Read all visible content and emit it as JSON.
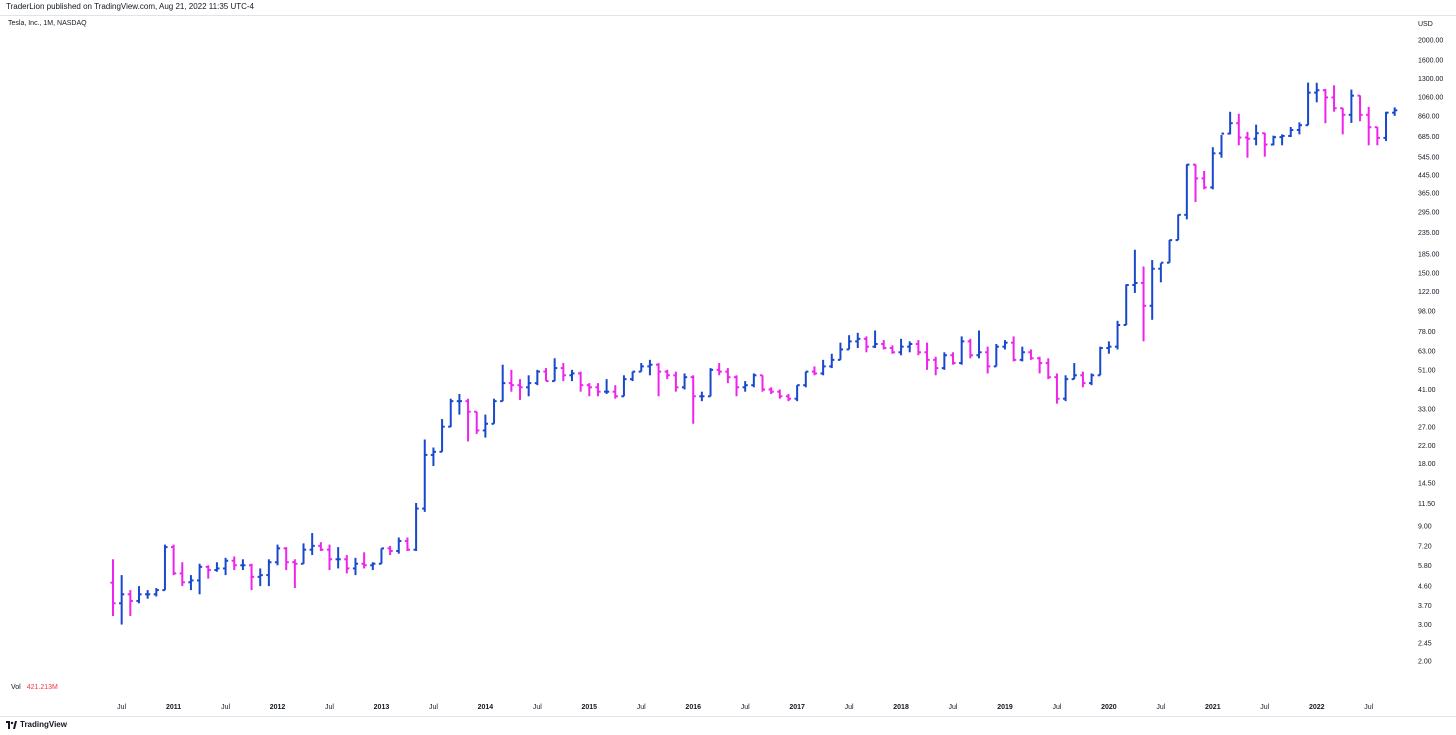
{
  "header": {
    "published": "TraderLion published on TradingView.com, Aug 21, 2022 11:35 UTC-4",
    "symbol": "Tesla, Inc., 1M, NASDAQ"
  },
  "volume": {
    "label": "Vol",
    "value": "421.213M"
  },
  "footer": {
    "brand": "TradingView"
  },
  "colors": {
    "up": "#1848cc",
    "down": "#ee24ee",
    "axis_text": "#131722",
    "vol_text": "#f23645"
  },
  "chart_data": {
    "type": "ohlc",
    "title": "Tesla, Inc., 1M, NASDAQ",
    "currency": "USD",
    "y_scale": "log",
    "ylim": [
      1.7,
      2400
    ],
    "y_ticks": [
      "2000.00",
      "1600.00",
      "1300.00",
      "1060.00",
      "860.00",
      "685.00",
      "545.00",
      "445.00",
      "365.00",
      "295.00",
      "235.00",
      "185.00",
      "150.00",
      "122.00",
      "98.00",
      "78.00",
      "63.00",
      "51.00",
      "41.00",
      "33.00",
      "27.00",
      "22.00",
      "18.00",
      "14.50",
      "11.50",
      "9.00",
      "7.20",
      "5.80",
      "4.60",
      "3.70",
      "3.00",
      "2.45",
      "2.00"
    ],
    "x_ticks": [
      {
        "label": "Jul",
        "i": 1
      },
      {
        "label": "2011",
        "i": 7
      },
      {
        "label": "Jul",
        "i": 13
      },
      {
        "label": "2012",
        "i": 19
      },
      {
        "label": "Jul",
        "i": 25
      },
      {
        "label": "2013",
        "i": 31
      },
      {
        "label": "Jul",
        "i": 37
      },
      {
        "label": "2014",
        "i": 43
      },
      {
        "label": "Jul",
        "i": 49
      },
      {
        "label": "2015",
        "i": 55
      },
      {
        "label": "Jul",
        "i": 61
      },
      {
        "label": "2016",
        "i": 67
      },
      {
        "label": "Jul",
        "i": 73
      },
      {
        "label": "2017",
        "i": 79
      },
      {
        "label": "Jul",
        "i": 85
      },
      {
        "label": "2018",
        "i": 91
      },
      {
        "label": "Jul",
        "i": 97
      },
      {
        "label": "2019",
        "i": 103
      },
      {
        "label": "Jul",
        "i": 109
      },
      {
        "label": "2020",
        "i": 115
      },
      {
        "label": "Jul",
        "i": 121
      },
      {
        "label": "2021",
        "i": 127
      },
      {
        "label": "Jul",
        "i": 133
      },
      {
        "label": "2022",
        "i": 139
      },
      {
        "label": "Jul",
        "i": 145
      }
    ],
    "series_ohlc": [
      [
        4.78,
        6.2,
        3.3,
        3.8
      ],
      [
        3.8,
        5.2,
        3.0,
        4.2
      ],
      [
        4.2,
        4.4,
        3.3,
        3.9
      ],
      [
        3.9,
        4.6,
        3.8,
        4.2
      ],
      [
        4.2,
        4.4,
        4.0,
        4.2
      ],
      [
        4.2,
        4.5,
        4.1,
        4.4
      ],
      [
        4.4,
        7.3,
        4.4,
        7.1
      ],
      [
        7.1,
        7.3,
        5.2,
        5.3
      ],
      [
        5.3,
        6.0,
        4.6,
        4.8
      ],
      [
        4.8,
        5.2,
        4.4,
        4.9
      ],
      [
        4.9,
        5.9,
        4.2,
        5.7
      ],
      [
        5.7,
        5.8,
        5.0,
        5.5
      ],
      [
        5.5,
        6.0,
        5.4,
        5.6
      ],
      [
        5.6,
        6.3,
        5.2,
        6.1
      ],
      [
        6.1,
        6.4,
        5.5,
        5.8
      ],
      [
        5.8,
        6.2,
        5.5,
        5.8
      ],
      [
        5.8,
        5.9,
        4.4,
        5.1
      ],
      [
        5.1,
        5.6,
        4.6,
        5.2
      ],
      [
        5.2,
        6.2,
        4.6,
        6.0
      ],
      [
        6.0,
        7.3,
        5.8,
        7.0
      ],
      [
        7.0,
        7.1,
        5.5,
        6.0
      ],
      [
        6.0,
        6.2,
        4.5,
        5.9
      ],
      [
        5.9,
        7.4,
        5.9,
        6.9
      ],
      [
        6.9,
        8.3,
        6.5,
        7.2
      ],
      [
        7.2,
        7.5,
        6.8,
        6.9
      ],
      [
        6.9,
        7.3,
        5.5,
        6.2
      ],
      [
        6.2,
        7.1,
        5.6,
        6.2
      ],
      [
        6.2,
        6.5,
        5.3,
        5.6
      ],
      [
        5.6,
        6.3,
        5.2,
        5.9
      ],
      [
        5.9,
        6.7,
        5.6,
        5.8
      ],
      [
        5.8,
        6.0,
        5.5,
        5.9
      ],
      [
        5.9,
        7.0,
        5.9,
        7.0
      ],
      [
        7.0,
        7.2,
        6.5,
        6.8
      ],
      [
        6.8,
        7.9,
        6.6,
        7.6
      ],
      [
        7.6,
        7.9,
        6.8,
        6.9
      ],
      [
        6.9,
        11.6,
        6.8,
        10.9
      ],
      [
        10.9,
        23.5,
        10.5,
        19.8
      ],
      [
        19.8,
        21.5,
        17.5,
        20.5
      ],
      [
        20.5,
        29.5,
        20.5,
        27.1
      ],
      [
        27.1,
        37.0,
        27.0,
        36.0
      ],
      [
        36.0,
        39.0,
        31.0,
        36.0
      ],
      [
        36.0,
        37.0,
        23.0,
        32.0
      ],
      [
        32.0,
        32.0,
        25.0,
        26.0
      ],
      [
        26.0,
        31.0,
        24.0,
        28.0
      ],
      [
        28.0,
        37.0,
        28.0,
        36.0
      ],
      [
        36.0,
        54.0,
        36.0,
        44.0
      ],
      [
        44.0,
        51.0,
        40.0,
        43.0
      ],
      [
        43.0,
        46.0,
        36.5,
        42.0
      ],
      [
        42.0,
        48.0,
        38.0,
        44.0
      ],
      [
        44.0,
        51.0,
        43.0,
        50.0
      ],
      [
        50.0,
        52.0,
        45.0,
        45.0
      ],
      [
        45.0,
        58.0,
        45.0,
        52.0
      ],
      [
        52.0,
        55.0,
        45.0,
        48.0
      ],
      [
        48.0,
        51.0,
        45.0,
        49.0
      ],
      [
        49.0,
        50.0,
        40.0,
        43.0
      ],
      [
        43.0,
        44.0,
        38.0,
        42.0
      ],
      [
        42.0,
        44.0,
        38.0,
        40.0
      ],
      [
        40.0,
        46.0,
        39.0,
        40.0
      ],
      [
        40.0,
        43.0,
        37.0,
        38.0
      ],
      [
        38.0,
        48.0,
        38.0,
        46.0
      ],
      [
        46.0,
        50.0,
        45.0,
        50.0
      ],
      [
        50.0,
        55.0,
        50.0,
        53.0
      ],
      [
        53.0,
        57.0,
        48.0,
        54.0
      ],
      [
        54.0,
        55.0,
        38.0,
        50.0
      ],
      [
        50.0,
        51.0,
        46.0,
        48.0
      ],
      [
        48.0,
        50.0,
        40.0,
        42.0
      ],
      [
        42.0,
        49.0,
        41.0,
        47.0
      ],
      [
        47.0,
        48.0,
        28.0,
        38.0
      ],
      [
        38.0,
        40.0,
        36.0,
        38.0
      ],
      [
        38.0,
        52.0,
        38.0,
        51.0
      ],
      [
        51.0,
        55.0,
        48.0,
        50.0
      ],
      [
        50.0,
        52.0,
        44.0,
        47.0
      ],
      [
        47.0,
        48.0,
        38.0,
        42.0
      ],
      [
        42.0,
        45.0,
        40.0,
        43.0
      ],
      [
        43.0,
        49.0,
        42.0,
        48.0
      ],
      [
        48.0,
        48.0,
        40.0,
        41.0
      ],
      [
        41.0,
        42.0,
        39.0,
        40.0
      ],
      [
        40.0,
        41.0,
        37.0,
        38.0
      ],
      [
        38.0,
        39.0,
        36.0,
        37.0
      ],
      [
        37.0,
        43.0,
        36.0,
        43.0
      ],
      [
        43.0,
        50.0,
        42.0,
        50.0
      ],
      [
        50.0,
        53.0,
        48.0,
        49.0
      ],
      [
        49.0,
        57.0,
        48.0,
        53.0
      ],
      [
        53.0,
        61.0,
        52.0,
        57.0
      ],
      [
        57.0,
        69.0,
        57.0,
        64.0
      ],
      [
        64.0,
        75.0,
        64.0,
        70.0
      ],
      [
        70.0,
        77.0,
        65.0,
        72.0
      ],
      [
        72.0,
        74.0,
        62.0,
        66.0
      ],
      [
        66.0,
        79.0,
        65.0,
        68.0
      ],
      [
        68.0,
        71.0,
        64.0,
        65.0
      ],
      [
        65.0,
        67.0,
        61.0,
        62.0
      ],
      [
        62.0,
        72.0,
        60.0,
        66.0
      ],
      [
        66.0,
        70.0,
        62.0,
        68.0
      ],
      [
        68.0,
        71.0,
        60.0,
        62.0
      ],
      [
        62.0,
        69.0,
        51.0,
        57.0
      ],
      [
        57.0,
        59.0,
        48.0,
        52.0
      ],
      [
        52.0,
        62.0,
        51.0,
        60.0
      ],
      [
        60.0,
        62.0,
        54.0,
        55.0
      ],
      [
        55.0,
        74.0,
        54.0,
        70.0
      ],
      [
        70.0,
        72.0,
        58.0,
        60.0
      ],
      [
        60.0,
        79.0,
        58.0,
        62.0
      ],
      [
        62.0,
        66.0,
        49.0,
        53.0
      ],
      [
        53.0,
        68.0,
        53.0,
        66.0
      ],
      [
        66.0,
        71.0,
        64.0,
        69.0
      ],
      [
        69.0,
        74.0,
        56.0,
        57.0
      ],
      [
        57.0,
        66.0,
        56.0,
        62.0
      ],
      [
        62.0,
        64.0,
        57.0,
        58.0
      ],
      [
        58.0,
        59.0,
        49.0,
        55.0
      ],
      [
        55.0,
        58.0,
        46.0,
        47.0
      ],
      [
        47.0,
        49.0,
        35.0,
        37.0
      ],
      [
        37.0,
        48.0,
        36.0,
        46.0
      ],
      [
        46.0,
        55.0,
        46.0,
        48.0
      ],
      [
        48.0,
        50.0,
        42.0,
        44.0
      ],
      [
        44.0,
        49.0,
        43.0,
        48.0
      ],
      [
        48.0,
        66.0,
        48.0,
        65.0
      ],
      [
        65.0,
        70.0,
        61.0,
        66.0
      ],
      [
        66.0,
        88.0,
        64.0,
        84.0
      ],
      [
        84.0,
        132.0,
        84.0,
        131.0
      ],
      [
        131.0,
        194.0,
        120.0,
        134.0
      ],
      [
        134.0,
        161.0,
        70.0,
        104.0
      ],
      [
        104.0,
        173.0,
        89.0,
        157.0
      ],
      [
        157.0,
        167.0,
        135.0,
        168.0
      ],
      [
        168.0,
        216.0,
        168.0,
        216.0
      ],
      [
        216.0,
        287.0,
        216.0,
        286.0
      ],
      [
        286.0,
        502.0,
        272.0,
        500.0
      ],
      [
        500.0,
        502.0,
        330.0,
        429.0
      ],
      [
        429.0,
        466.0,
        380.0,
        388.0
      ],
      [
        388.0,
        607.0,
        380.0,
        567.0
      ],
      [
        567.0,
        695.0,
        540.0,
        706.0
      ],
      [
        706.0,
        900.0,
        700.0,
        793.0
      ],
      [
        793.0,
        880.0,
        620.0,
        676.0
      ],
      [
        676.0,
        720.0,
        540.0,
        667.0
      ],
      [
        667.0,
        780.0,
        620.0,
        709.0
      ],
      [
        709.0,
        712.0,
        546.0,
        625.0
      ],
      [
        625.0,
        690.0,
        620.0,
        679.0
      ],
      [
        679.0,
        700.0,
        620.0,
        688.0
      ],
      [
        688.0,
        760.0,
        680.0,
        735.0
      ],
      [
        735.0,
        800.0,
        700.0,
        775.0
      ],
      [
        775.0,
        1245.0,
        775.0,
        1114.0
      ],
      [
        1114.0,
        1243.0,
        1000.0,
        1144.0
      ],
      [
        1144.0,
        1160.0,
        792.0,
        1056.0
      ],
      [
        1056.0,
        1208.0,
        901.0,
        936.0
      ],
      [
        936.0,
        940.0,
        700.0,
        870.0
      ],
      [
        870.0,
        1152.0,
        795.0,
        1077.0
      ],
      [
        1077.0,
        1080.0,
        810.0,
        870.0
      ],
      [
        870.0,
        950.0,
        620.0,
        758.0
      ],
      [
        758.0,
        760.0,
        620.0,
        673.0
      ],
      [
        673.0,
        900.0,
        650.0,
        891.0
      ],
      [
        891.0,
        945.0,
        860.0,
        915.0
      ]
    ]
  }
}
